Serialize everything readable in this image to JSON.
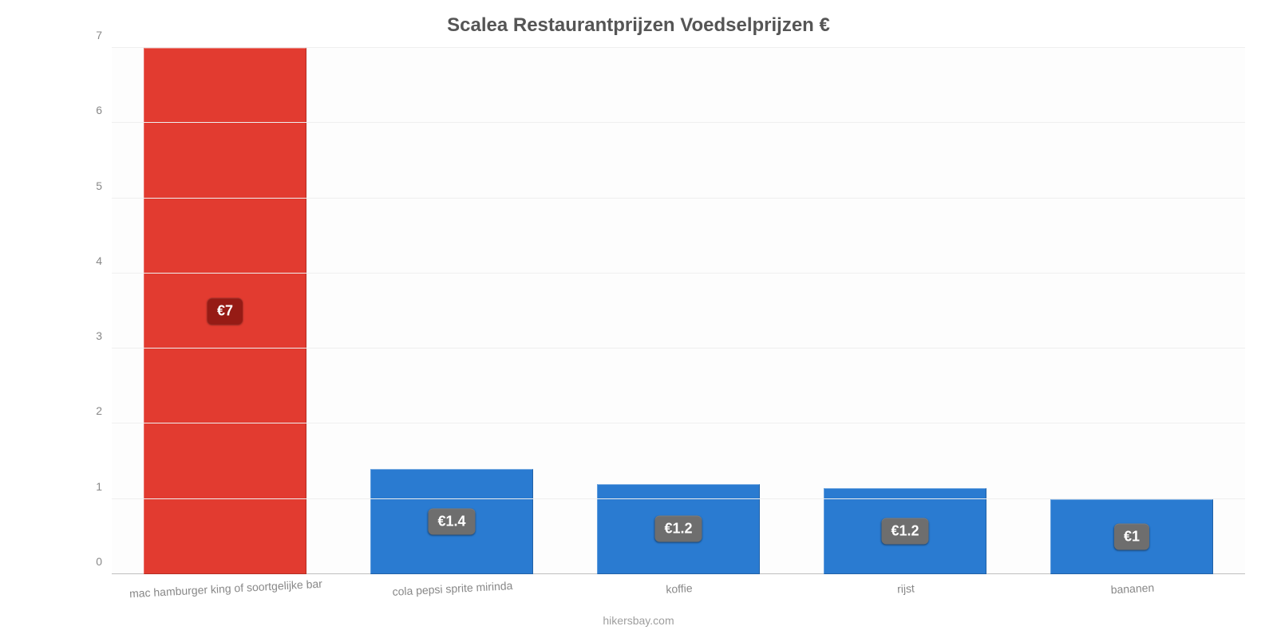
{
  "chart": {
    "type": "bar",
    "title": "Scalea Restaurantprijzen Voedselprijzen €",
    "title_fontsize": 24,
    "title_color": "#555555",
    "background_color": "#ffffff",
    "plot_background_color": "#fdfdfd",
    "grid_color": "#efefef",
    "axis_line_color": "#bfbfbf",
    "tick_label_color": "#888888",
    "tick_label_fontsize": 14,
    "ylim": [
      0,
      7
    ],
    "yticks": [
      0,
      1,
      2,
      3,
      4,
      5,
      6,
      7
    ],
    "bar_width": 0.72,
    "attribution": "hikersbay.com",
    "attribution_color": "#9e9e9e",
    "value_label_bg_default": "#6e6e6e",
    "value_label_bg_highlight": "#961b15",
    "value_label_fontsize": 18,
    "categories": [
      {
        "label": "mac hamburger king of soortgelijke bar",
        "value": 7.0,
        "value_label": "€7",
        "color": "#e23b30",
        "highlight": true
      },
      {
        "label": "cola pepsi sprite mirinda",
        "value": 1.4,
        "value_label": "€1.4",
        "color": "#2a7bd1",
        "highlight": false
      },
      {
        "label": "koffie",
        "value": 1.2,
        "value_label": "€1.2",
        "color": "#2a7bd1",
        "highlight": false
      },
      {
        "label": "rijst",
        "value": 1.15,
        "value_label": "€1.2",
        "color": "#2a7bd1",
        "highlight": false
      },
      {
        "label": "bananen",
        "value": 1.0,
        "value_label": "€1",
        "color": "#2a7bd1",
        "highlight": false
      }
    ]
  }
}
